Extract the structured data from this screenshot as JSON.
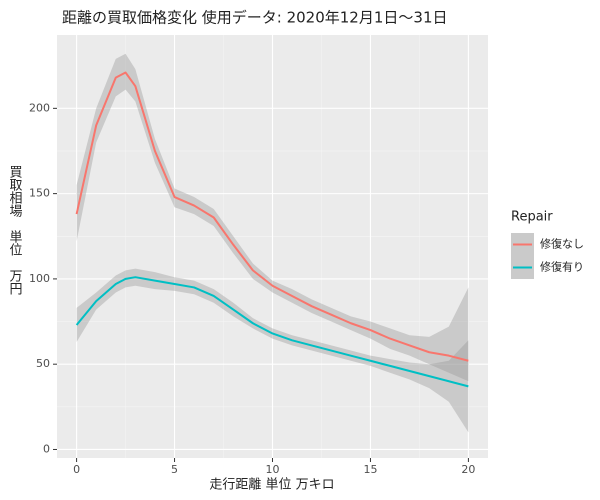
{
  "chart_data": {
    "type": "line",
    "title": "距離の買取価格変化 使用データ: 2020年12月1日～31日",
    "x_label": "走行距離 単位 万キロ",
    "y_label": "買取相場　単位　万円",
    "legend_title": "Repair",
    "x": [
      0,
      1,
      2,
      2.5,
      3,
      4,
      5,
      6,
      7,
      8,
      9,
      10,
      11,
      12,
      13,
      14,
      15,
      16,
      17,
      18,
      19,
      20
    ],
    "series": [
      {
        "name": "修復なし",
        "color": "#F8766D",
        "values": [
          138,
          190,
          218,
          221,
          213,
          175,
          148,
          143,
          136,
          120,
          105,
          96,
          90,
          84,
          79,
          74,
          70,
          65,
          61,
          57,
          55,
          52
        ],
        "lower": [
          122,
          180,
          207,
          211,
          204,
          168,
          142,
          138,
          131,
          115,
          100,
          92,
          86,
          80,
          75,
          70,
          65,
          59,
          55,
          50,
          45,
          40
        ],
        "upper": [
          155,
          200,
          229,
          232,
          223,
          182,
          153,
          148,
          141,
          125,
          109,
          99,
          94,
          88,
          83,
          78,
          75,
          71,
          67,
          66,
          72,
          95
        ]
      },
      {
        "name": "修復有り",
        "color": "#00BFC4",
        "values": [
          73,
          87,
          97,
          100,
          101,
          99,
          97,
          95,
          90,
          82,
          74,
          68,
          64,
          61,
          58,
          55,
          52,
          49,
          46,
          43,
          40,
          37
        ],
        "lower": [
          63,
          82,
          92,
          95,
          96,
          94,
          93,
          91,
          86,
          78,
          71,
          65,
          61,
          58,
          55,
          52,
          49,
          45,
          41,
          36,
          28,
          10
        ],
        "upper": [
          83,
          92,
          102,
          105,
          106,
          104,
          101,
          99,
          94,
          86,
          77,
          71,
          67,
          64,
          61,
          58,
          55,
          53,
          51,
          50,
          52,
          64
        ]
      }
    ],
    "band_color": "#999999",
    "xlim": [
      -1,
      21
    ],
    "xticks": [
      0,
      5,
      10,
      15,
      20
    ],
    "ylim": [
      -5,
      243
    ],
    "yticks": [
      0,
      50,
      100,
      150,
      200
    ],
    "grid": true
  }
}
